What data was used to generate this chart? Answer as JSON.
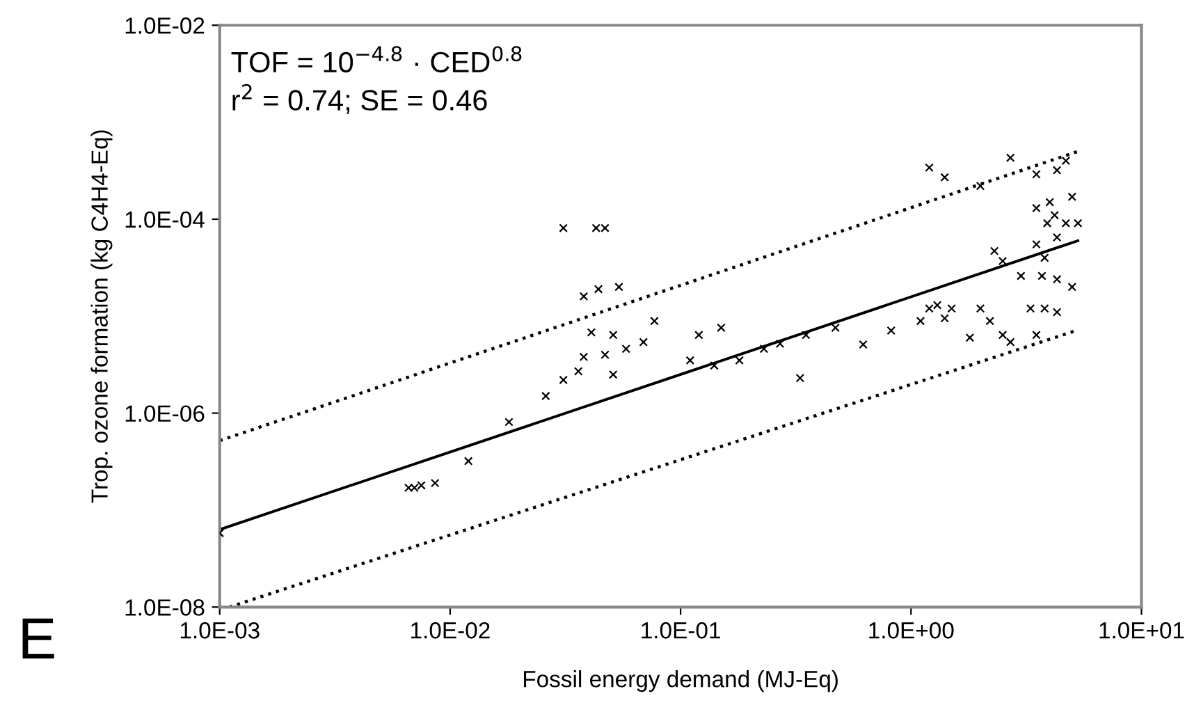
{
  "chart_data": {
    "type": "scatter",
    "xlabel": "Fossil energy demand (MJ-Eq)",
    "ylabel": "Trop. ozone formation (kg C4H4-Eq)",
    "annotations": [
      "TOF = 10$^{−4.8}$ · CED$^{0.8}$",
      "r$^{2}$ = 0.74; SE = 0.46",
      "E"
    ],
    "log": "xy",
    "grid": false,
    "xlim": [
      0.001,
      10
    ],
    "ylim": [
      1e-08,
      0.01
    ],
    "xticks": [
      {
        "value": 0.001,
        "label": "1.0E-03"
      },
      {
        "value": 0.01,
        "label": "1.0E-02"
      },
      {
        "value": 0.1,
        "label": "1.0E-01"
      },
      {
        "value": 1,
        "label": "1.0E+00"
      },
      {
        "value": 10,
        "label": "1.0E+01"
      }
    ],
    "yticks": [
      {
        "value": 1e-08,
        "label": "1.0E-08"
      },
      {
        "value": 1e-06,
        "label": "1.0E-06"
      },
      {
        "value": 0.0001,
        "label": "1.0E-04"
      },
      {
        "value": 0.01,
        "label": "1.0E-02"
      }
    ],
    "series": [
      {
        "color": "#000000",
        "marker": "cross",
        "x": [
          0.001,
          0.0066,
          0.007,
          0.0075,
          0.0086,
          0.012,
          0.018,
          0.026,
          0.031,
          0.036,
          0.031,
          0.043,
          0.047,
          0.038,
          0.044,
          0.054,
          0.041,
          0.051,
          0.038,
          0.047,
          0.058,
          0.069,
          0.051,
          0.077,
          0.12,
          0.15,
          0.11,
          0.14,
          0.18,
          0.23,
          0.27,
          0.35,
          0.47,
          0.33,
          0.62,
          0.82,
          1.1,
          1.2,
          1.3,
          1.5,
          1.4,
          1.2,
          1.4,
          2.0,
          2.3,
          2.5,
          2.0,
          2.2,
          2.7,
          3.3,
          3.8,
          4.3,
          2.5,
          1.8,
          3.5,
          3.0,
          3.7,
          4.3,
          5.0,
          2.7,
          3.5,
          4.3,
          3.5,
          3.9,
          4.3,
          3.5,
          4.0,
          4.7,
          5.3,
          5.0,
          4.7,
          3.8,
          4.2
        ],
        "values": [
          5.8e-08,
          1.7e-07,
          1.7e-07,
          1.8e-07,
          1.9e-07,
          3.2e-07,
          8.1e-07,
          1.5e-06,
          2.2e-06,
          2.7e-06,
          8.1e-05,
          8.1e-05,
          8.1e-05,
          1.6e-05,
          1.9e-05,
          2e-05,
          6.8e-06,
          6.4e-06,
          3.8e-06,
          4e-06,
          4.6e-06,
          5.4e-06,
          2.5e-06,
          8.9e-06,
          6.4e-06,
          7.6e-06,
          3.5e-06,
          3.1e-06,
          3.5e-06,
          4.6e-06,
          5.2e-06,
          6.4e-06,
          7.6e-06,
          2.3e-06,
          5.1e-06,
          7.1e-06,
          8.9e-06,
          1.2e-05,
          1.3e-05,
          1.2e-05,
          9.5e-06,
          0.00034,
          0.00027,
          0.00022,
          4.7e-05,
          3.7e-05,
          1.2e-05,
          8.9e-06,
          5.4e-06,
          1.2e-05,
          1.2e-05,
          1.1e-05,
          6.4e-06,
          6e-06,
          6.4e-06,
          2.6e-05,
          2.6e-05,
          2.4e-05,
          2e-05,
          0.00043,
          0.00029,
          0.00032,
          0.00013,
          9.1e-05,
          6.5e-05,
          5.5e-05,
          0.00015,
          9.1e-05,
          9.1e-05,
          0.00017,
          0.0004,
          4e-05,
          0.00011
        ]
      },
      {
        "type": "line",
        "color": "#000000",
        "line_style": "solid",
        "x": [
          0.001,
          5.3
        ],
        "values": [
          6.3e-08,
          6e-05
        ]
      },
      {
        "type": "line",
        "color": "#000000",
        "line_style": "dotted",
        "x": [
          0.001,
          5.3
        ],
        "values": [
          5.2e-07,
          0.0005
        ]
      },
      {
        "type": "line",
        "color": "#000000",
        "line_style": "dotted",
        "x": [
          0.0011,
          5.3
        ],
        "values": [
          1e-08,
          7.2e-06
        ]
      }
    ]
  }
}
